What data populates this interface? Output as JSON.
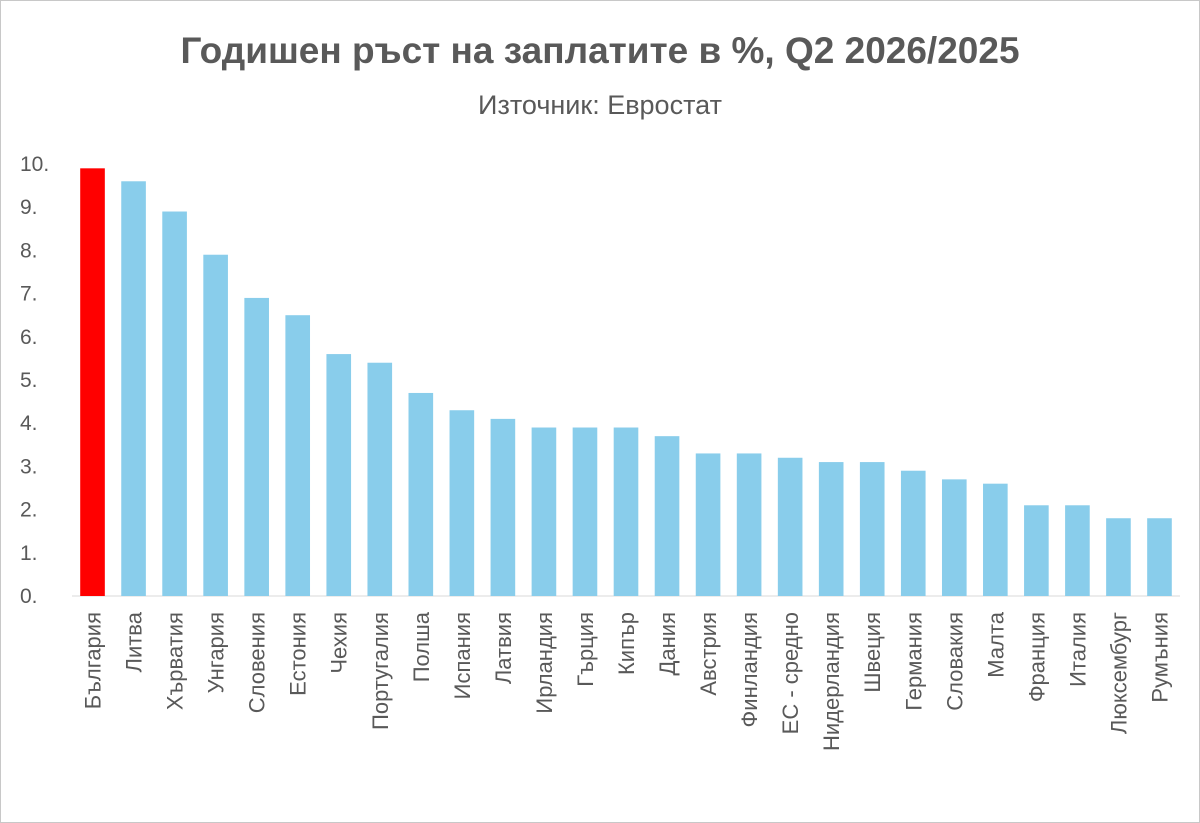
{
  "chart_data": {
    "type": "bar",
    "title": "Годишен ръст на заплатите в %, Q2 2026/2025",
    "subtitle": "Източник: Евростат",
    "xlabel": "",
    "ylabel": "",
    "ylim": [
      0,
      10
    ],
    "yticks": [
      "0.",
      "1.",
      "2.",
      "3.",
      "4.",
      "5.",
      "6.",
      "7.",
      "8.",
      "9.",
      "10."
    ],
    "grid": false,
    "legend": "none",
    "categories": [
      "България",
      "Литва",
      "Хърватия",
      "Унгария",
      "Словения",
      "Естония",
      "Чехия",
      "Португалия",
      "Полша",
      "Испания",
      "Латвия",
      "Ирландия",
      "Гърция",
      "Кипър",
      "Дания",
      "Австрия",
      "Финландия",
      "ЕС - средно",
      "Нидерландия",
      "Швеция",
      "Германия",
      "Словакия",
      "Малта",
      "Франция",
      "Италия",
      "Люксембург",
      "Румъния"
    ],
    "values": [
      9.9,
      9.6,
      8.9,
      7.9,
      6.9,
      6.5,
      5.6,
      5.4,
      4.7,
      4.3,
      4.1,
      3.9,
      3.9,
      3.9,
      3.7,
      3.3,
      3.3,
      3.2,
      3.1,
      3.1,
      2.9,
      2.7,
      2.6,
      2.1,
      2.1,
      1.8,
      1.8
    ],
    "colors": {
      "default": "#89CDEB",
      "highlight": "#FF0000",
      "highlight_category": "България"
    }
  }
}
